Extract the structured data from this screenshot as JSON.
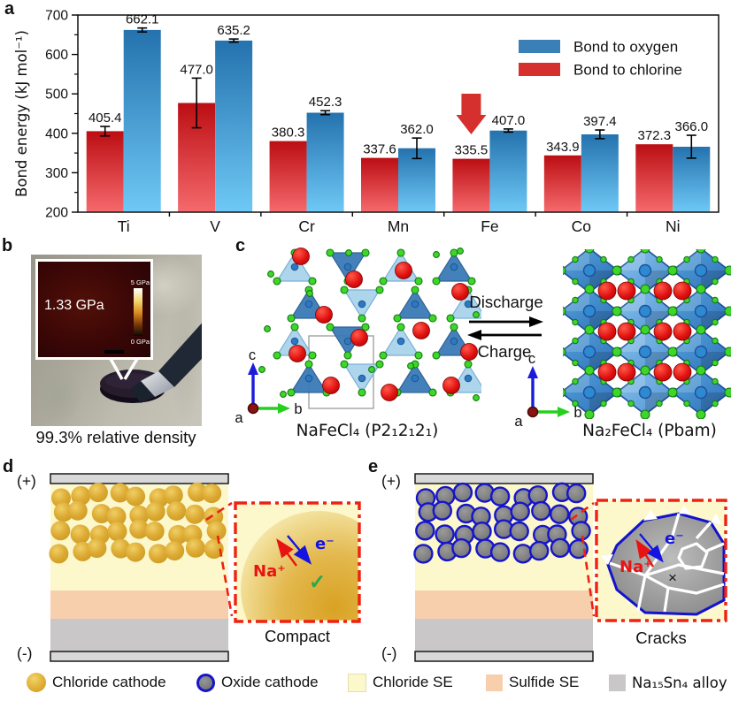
{
  "panel_labels": {
    "a": "a",
    "b": "b",
    "c": "c",
    "d": "d",
    "e": "e"
  },
  "chart_data": {
    "type": "bar",
    "title": "",
    "xlabel": "",
    "ylabel": "Bond energy (kJ mol⁻¹)",
    "ylim": [
      200,
      700
    ],
    "yticks": [
      200,
      300,
      400,
      500,
      600,
      700
    ],
    "grid": false,
    "categories": [
      "Ti",
      "V",
      "Cr",
      "Mn",
      "Fe",
      "Co",
      "Ni"
    ],
    "series": [
      {
        "name": "Bond to chlorine",
        "color_top": "#bb0e13",
        "color_bottom": "#f5696c",
        "values": [
          405.4,
          477.0,
          380.3,
          337.6,
          335.5,
          343.9,
          372.3
        ],
        "errors": [
          12,
          63,
          0,
          0,
          0,
          0,
          0
        ]
      },
      {
        "name": "Bond to oxygen",
        "color_top": "#2472ae",
        "color_bottom": "#6ec8f5",
        "values": [
          662.1,
          635.2,
          452.3,
          362.0,
          407.0,
          397.4,
          366.0
        ],
        "errors": [
          5,
          4,
          5,
          26,
          4,
          11,
          29
        ]
      }
    ],
    "legend": [
      {
        "label": "Bond to oxygen",
        "color": "#3a7fb5"
      },
      {
        "label": "Bond to chlorine",
        "color": "#d6302e"
      }
    ],
    "legend_position": "top-right",
    "annotation": {
      "type": "down-arrow",
      "category": "Fe",
      "series": "Bond to chlorine",
      "color": "#d6302e"
    }
  },
  "panel_b": {
    "inset_value": "1.33 GPa",
    "colorbar_max": "5 GPa",
    "colorbar_min": "0 GPa",
    "caption": "99.3% relative density"
  },
  "panel_c": {
    "left_label": "NaFeCl₄ (P2₁2₁2₁)",
    "right_label": "Na₂FeCl₄ (Pbam)",
    "forward_label": "Discharge",
    "reverse_label": "Charge",
    "axis": {
      "a": "a",
      "b": "b",
      "c": "c"
    }
  },
  "panel_d": {
    "positive": "(+)",
    "negative": "(-)",
    "ion_label": "Na⁺",
    "electron_label": "e⁻",
    "check": "✓",
    "inset_caption": "Compact"
  },
  "panel_e": {
    "positive": "(+)",
    "negative": "(-)",
    "ion_label": "Na⁺",
    "electron_label": "e⁻",
    "cross": "×",
    "inset_caption": "Cracks"
  },
  "legend": {
    "items": [
      {
        "label": "Chloride cathode",
        "swatch": "gold-circle"
      },
      {
        "label": "Oxide cathode",
        "swatch": "gray-circle-blue-ring"
      },
      {
        "label": "Chloride SE",
        "swatch": "pale-yellow-square"
      },
      {
        "label": "Sulfide SE",
        "swatch": "salmon-square"
      },
      {
        "label": "Na₁₅Sn₄ alloy",
        "swatch": "gray-square"
      }
    ]
  },
  "colors": {
    "chloride_se": "#fcf8cc",
    "sulfide_se": "#f8cfad",
    "alloy": "#c9c7c8",
    "collector": "#d8d8d8",
    "cathode_gold": "#ddab34",
    "oxide_gray": "#7d7d7d",
    "oxide_ring": "#1515cc",
    "inset_border_red": "#ee2211",
    "ion_red": "#e81414",
    "electron_blue": "#1414e0",
    "check_green": "#2aa84a"
  }
}
